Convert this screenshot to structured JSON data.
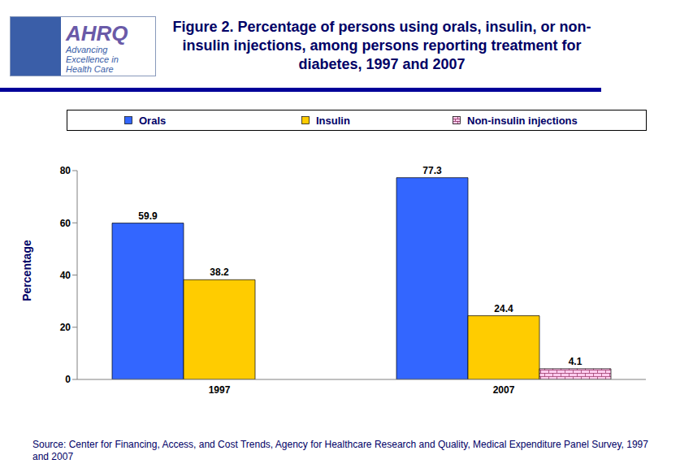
{
  "chart_data": {
    "type": "bar",
    "title": "Figure 2. Percentage of persons using orals, insulin, or non-insulin injections, among persons reporting treatment for diabetes, 1997 and 2007",
    "logo": {
      "name": "AHRQ",
      "tagline": "Advancing Excellence in Health Care"
    },
    "y_label": "Percentage",
    "source": "Source: Center for Financing, Access, and Cost Trends, Agency for Healthcare Research and Quality, Medical Expenditure Panel Survey, 1997 and 2007",
    "categories": [
      "1997",
      "2007"
    ],
    "series": [
      {
        "name": "Orals",
        "color": "#3366ff",
        "values": [
          59.9,
          77.3
        ]
      },
      {
        "name": "Insulin",
        "color": "#ffcc00",
        "values": [
          38.2,
          24.4
        ]
      },
      {
        "name": "Non-insulin injections",
        "color": "#ffccee",
        "values": [
          null,
          4.1
        ]
      }
    ],
    "ylim": [
      0,
      80
    ],
    "yticks": [
      0,
      20,
      40,
      60,
      80
    ],
    "grid": false,
    "data_labels": true,
    "legend": "top"
  }
}
